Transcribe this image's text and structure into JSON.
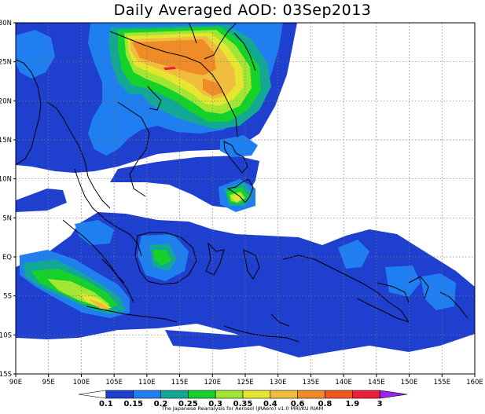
{
  "title": "Daily Averaged AOD: 03Sep2013",
  "credit": "The Japanese Reanalysis for Aerosol (JRAero) v1.0 MRI/KU RIAM",
  "map": {
    "lon_range": [
      90,
      160
    ],
    "lat_range": [
      -15,
      30
    ],
    "x_ticks": [
      {
        "lon": 90,
        "label": "90E"
      },
      {
        "lon": 95,
        "label": "95E"
      },
      {
        "lon": 100,
        "label": "100E"
      },
      {
        "lon": 105,
        "label": "105E"
      },
      {
        "lon": 110,
        "label": "110E"
      },
      {
        "lon": 115,
        "label": "115E"
      },
      {
        "lon": 120,
        "label": "120E"
      },
      {
        "lon": 125,
        "label": "125E"
      },
      {
        "lon": 130,
        "label": "130E"
      },
      {
        "lon": 135,
        "label": "135E"
      },
      {
        "lon": 140,
        "label": "140E"
      },
      {
        "lon": 145,
        "label": "145E"
      },
      {
        "lon": 150,
        "label": "150E"
      },
      {
        "lon": 155,
        "label": "155E"
      },
      {
        "lon": 160,
        "label": "160E"
      }
    ],
    "y_ticks": [
      {
        "lat": 30,
        "label": "30N"
      },
      {
        "lat": 25,
        "label": "25N"
      },
      {
        "lat": 20,
        "label": "20N"
      },
      {
        "lat": 15,
        "label": "15N"
      },
      {
        "lat": 10,
        "label": "10N"
      },
      {
        "lat": 5,
        "label": "5N"
      },
      {
        "lat": 0,
        "label": "EQ"
      },
      {
        "lat": -5,
        "label": "5S"
      },
      {
        "lat": -10,
        "label": "10S"
      },
      {
        "lat": -15,
        "label": "15S"
      }
    ],
    "grid": true
  },
  "colorbar": {
    "levels": [
      "0.1",
      "0.15",
      "0.2",
      "0.25",
      "0.3",
      "0.35",
      "0.4",
      "0.6",
      "0.8",
      "1.9",
      "3"
    ],
    "colors": [
      "#ffffff",
      "#1f3fcf",
      "#1f7ff0",
      "#13a896",
      "#14d22a",
      "#a0e632",
      "#e6e632",
      "#f0be3c",
      "#f08c28",
      "#f05a1e",
      "#ec1e3c",
      "#a020f0"
    ]
  }
}
